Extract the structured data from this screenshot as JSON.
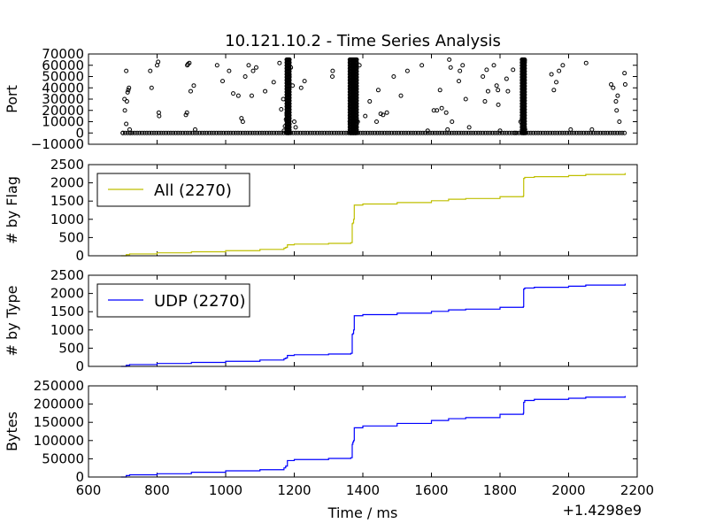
{
  "title": "10.121.10.2 - Time Series Analysis",
  "x_axis": {
    "label": "Time / ms",
    "offset_label": "+1.4298e9",
    "range": [
      600,
      2200
    ],
    "ticks": [
      600,
      800,
      1000,
      1200,
      1400,
      1600,
      1800,
      2000,
      2200
    ],
    "tick_labels": [
      "600",
      "800",
      "1000",
      "1200",
      "1400",
      "1600",
      "1800",
      "2000",
      "2200"
    ]
  },
  "chart_data": [
    {
      "type": "scatter",
      "ylabel": "Port",
      "ylim": [
        -10000,
        70000
      ],
      "yticks": [
        -10000,
        0,
        10000,
        20000,
        30000,
        40000,
        50000,
        60000,
        70000
      ],
      "ytick_labels": [
        "−10000",
        "0",
        "10000",
        "20000",
        "30000",
        "40000",
        "50000",
        "60000",
        "70000"
      ],
      "marker_color": "#000000",
      "points": [
        [
          700,
          0
        ],
        [
          705,
          30000
        ],
        [
          706,
          20000
        ],
        [
          710,
          55000
        ],
        [
          710,
          8000
        ],
        [
          712,
          28000
        ],
        [
          714,
          36000
        ],
        [
          716,
          38000
        ],
        [
          718,
          40000
        ],
        [
          720,
          3000
        ],
        [
          722,
          0
        ],
        [
          780,
          55000
        ],
        [
          784,
          40000
        ],
        [
          800,
          60000
        ],
        [
          803,
          63000
        ],
        [
          805,
          18000
        ],
        [
          806,
          15000
        ],
        [
          884,
          16000
        ],
        [
          887,
          18000
        ],
        [
          888,
          60000
        ],
        [
          890,
          61000
        ],
        [
          894,
          62000
        ],
        [
          898,
          37000
        ],
        [
          907,
          42000
        ],
        [
          911,
          3000
        ],
        [
          975,
          60000
        ],
        [
          991,
          46000
        ],
        [
          1010,
          55000
        ],
        [
          1022,
          35000
        ],
        [
          1037,
          33000
        ],
        [
          1046,
          13000
        ],
        [
          1050,
          10000
        ],
        [
          1057,
          50000
        ],
        [
          1067,
          60000
        ],
        [
          1076,
          33000
        ],
        [
          1080,
          55000
        ],
        [
          1089,
          58000
        ],
        [
          1115,
          37000
        ],
        [
          1140,
          45000
        ],
        [
          1157,
          62000
        ],
        [
          1162,
          21000
        ],
        [
          1168,
          30000
        ],
        [
          1170,
          2000
        ],
        [
          1173,
          6000
        ],
        [
          1176,
          12000
        ],
        [
          1178,
          17000
        ],
        [
          1180,
          25000
        ],
        [
          1182,
          35000
        ],
        [
          1184,
          45000
        ],
        [
          1186,
          50000
        ],
        [
          1190,
          58000
        ],
        [
          1195,
          42000
        ],
        [
          1200,
          10000
        ],
        [
          1204,
          5000
        ],
        [
          1220,
          40000
        ],
        [
          1230,
          46000
        ],
        [
          1311,
          50000
        ],
        [
          1312,
          55000
        ],
        [
          1362,
          10000
        ],
        [
          1364,
          30000
        ],
        [
          1367,
          45000
        ],
        [
          1369,
          52000
        ],
        [
          1371,
          60000
        ],
        [
          1373,
          64000
        ],
        [
          1375,
          5000
        ],
        [
          1377,
          25000
        ],
        [
          1379,
          40000
        ],
        [
          1381,
          58000
        ],
        [
          1385,
          10000
        ],
        [
          1390,
          60000
        ],
        [
          1407,
          15000
        ],
        [
          1420,
          28000
        ],
        [
          1440,
          10000
        ],
        [
          1445,
          38000
        ],
        [
          1452,
          17000
        ],
        [
          1459,
          16000
        ],
        [
          1470,
          18000
        ],
        [
          1490,
          50000
        ],
        [
          1511,
          33000
        ],
        [
          1530,
          55000
        ],
        [
          1572,
          60000
        ],
        [
          1589,
          2000
        ],
        [
          1607,
          20000
        ],
        [
          1616,
          20000
        ],
        [
          1625,
          38000
        ],
        [
          1630,
          22000
        ],
        [
          1643,
          18000
        ],
        [
          1647,
          3000
        ],
        [
          1652,
          65000
        ],
        [
          1656,
          58000
        ],
        [
          1660,
          10000
        ],
        [
          1680,
          46000
        ],
        [
          1683,
          55000
        ],
        [
          1691,
          60000
        ],
        [
          1700,
          30000
        ],
        [
          1710,
          5000
        ],
        [
          1750,
          50000
        ],
        [
          1756,
          28000
        ],
        [
          1761,
          56000
        ],
        [
          1765,
          37000
        ],
        [
          1782,
          60000
        ],
        [
          1790,
          42000
        ],
        [
          1794,
          38000
        ],
        [
          1795,
          25000
        ],
        [
          1800,
          2000
        ],
        [
          1819,
          48000
        ],
        [
          1823,
          37000
        ],
        [
          1838,
          56000
        ],
        [
          1844,
          0
        ],
        [
          1860,
          10000
        ],
        [
          1865,
          20000
        ],
        [
          1867,
          30000
        ],
        [
          1869,
          45000
        ],
        [
          1870,
          55000
        ],
        [
          1872,
          64000
        ],
        [
          1873,
          3000
        ],
        [
          1874,
          0
        ],
        [
          1950,
          52000
        ],
        [
          1957,
          38000
        ],
        [
          1964,
          45000
        ],
        [
          1972,
          55000
        ],
        [
          1983,
          60000
        ],
        [
          2006,
          3000
        ],
        [
          2051,
          62000
        ],
        [
          2068,
          3000
        ],
        [
          2124,
          43000
        ],
        [
          2130,
          40000
        ],
        [
          2138,
          28000
        ],
        [
          2140,
          20000
        ],
        [
          2143,
          33000
        ],
        [
          2148,
          10000
        ],
        [
          2163,
          53000
        ],
        [
          2165,
          43000
        ]
      ]
    },
    {
      "type": "line",
      "ylabel": "# by Flag",
      "ylim": [
        0,
        2500
      ],
      "yticks": [
        0,
        500,
        1000,
        1500,
        2000,
        2500
      ],
      "ytick_labels": [
        "0",
        "500",
        "1000",
        "1500",
        "2000",
        "2500"
      ],
      "legend_position": "upper-left",
      "series": [
        {
          "name": "All (2270)",
          "color": "#bfbf00",
          "x": [
            695,
            710,
            720,
            800,
            900,
            1000,
            1100,
            1170,
            1175,
            1180,
            1200,
            1300,
            1365,
            1369,
            1371,
            1373,
            1375,
            1400,
            1500,
            1600,
            1650,
            1700,
            1800,
            1868,
            1869,
            1872,
            1900,
            2000,
            2050,
            2165
          ],
          "y": [
            0,
            30,
            50,
            80,
            110,
            140,
            175,
            210,
            230,
            300,
            320,
            340,
            360,
            880,
            900,
            1000,
            1390,
            1420,
            1460,
            1510,
            1550,
            1570,
            1620,
            1640,
            2120,
            2150,
            2170,
            2200,
            2230,
            2270
          ]
        }
      ]
    },
    {
      "type": "line",
      "ylabel": "# by Type",
      "ylim": [
        0,
        2500
      ],
      "yticks": [
        0,
        500,
        1000,
        1500,
        2000,
        2500
      ],
      "ytick_labels": [
        "0",
        "500",
        "1000",
        "1500",
        "2000",
        "2500"
      ],
      "legend_position": "upper-left",
      "series": [
        {
          "name": "UDP (2270)",
          "color": "#0000ff",
          "x": [
            695,
            710,
            720,
            800,
            900,
            1000,
            1100,
            1170,
            1175,
            1180,
            1200,
            1300,
            1365,
            1369,
            1371,
            1373,
            1375,
            1400,
            1500,
            1600,
            1650,
            1700,
            1800,
            1868,
            1869,
            1872,
            1900,
            2000,
            2050,
            2165
          ],
          "y": [
            0,
            30,
            50,
            80,
            110,
            140,
            175,
            210,
            230,
            300,
            320,
            340,
            360,
            880,
            900,
            1000,
            1390,
            1420,
            1460,
            1510,
            1550,
            1570,
            1620,
            1640,
            2120,
            2150,
            2170,
            2200,
            2230,
            2270
          ]
        }
      ]
    },
    {
      "type": "line",
      "ylabel": "Bytes",
      "ylim": [
        0,
        250000
      ],
      "yticks": [
        0,
        50000,
        100000,
        150000,
        200000,
        250000
      ],
      "ytick_labels": [
        "0",
        "50000",
        "100000",
        "150000",
        "200000",
        "250000"
      ],
      "series": [
        {
          "color": "#0000ff",
          "x": [
            695,
            710,
            720,
            800,
            900,
            1000,
            1100,
            1170,
            1175,
            1180,
            1200,
            1300,
            1365,
            1369,
            1371,
            1373,
            1375,
            1400,
            1500,
            1600,
            1650,
            1700,
            1800,
            1868,
            1869,
            1872,
            1900,
            2000,
            2050,
            2165
          ],
          "y": [
            0,
            4000,
            6000,
            9000,
            13000,
            17000,
            20000,
            25000,
            30000,
            45000,
            48000,
            51000,
            53000,
            90000,
            96000,
            100000,
            135000,
            140000,
            147000,
            155000,
            160000,
            163000,
            172000,
            175000,
            205000,
            210000,
            213000,
            216000,
            219000,
            222000
          ]
        }
      ]
    }
  ]
}
